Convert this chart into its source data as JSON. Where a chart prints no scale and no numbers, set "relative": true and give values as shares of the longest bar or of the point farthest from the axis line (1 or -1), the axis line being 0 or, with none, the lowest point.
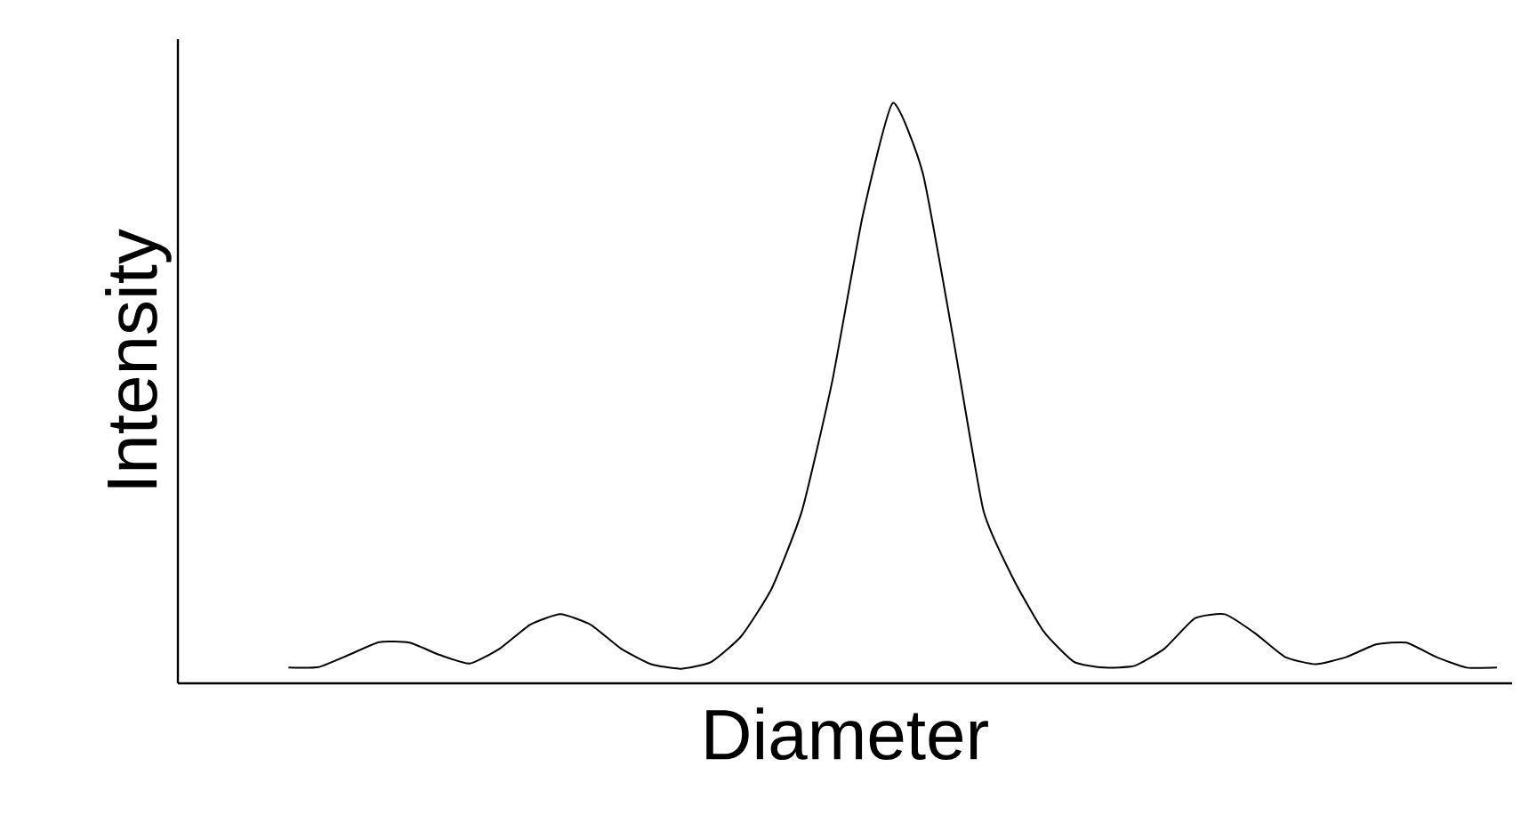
{
  "chart_data": {
    "type": "line",
    "relative": true,
    "xlabel": "Diameter",
    "ylabel": "Intensity",
    "categories": [
      null,
      null,
      null,
      null,
      null,
      null,
      null,
      null,
      null,
      null,
      null,
      null,
      null,
      null,
      null,
      null,
      null,
      null,
      null,
      null,
      null,
      null,
      null,
      null,
      null,
      null,
      null,
      null,
      null,
      null,
      null,
      null,
      null,
      null,
      null,
      null,
      null,
      null,
      null,
      null,
      null
    ],
    "series": [
      {
        "color": "#000000",
        "values": [
          0.027,
          0.028,
          0.049,
          0.071,
          0.07,
          0.049,
          0.034,
          0.06,
          0.101,
          0.119,
          0.101,
          0.06,
          0.033,
          0.025,
          0.037,
          0.082,
          0.164,
          0.298,
          0.521,
          0.804,
          1,
          0.878,
          0.595,
          0.298,
          0.179,
          0.089,
          0.037,
          0.027,
          0.03,
          0.06,
          0.112,
          0.119,
          0.086,
          0.045,
          0.033,
          0.045,
          0.067,
          0.07,
          0.045,
          0.027,
          0.027
        ]
      }
    ],
    "marker": "none",
    "line_style": "solid"
  }
}
